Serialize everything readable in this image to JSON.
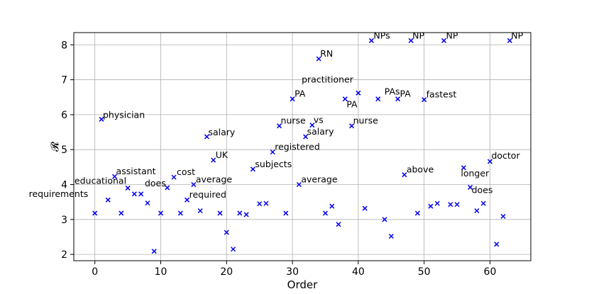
{
  "chart_data": {
    "type": "scatter",
    "xlabel": "Order",
    "ylabel": "𝓡",
    "xlim": [
      -3.2,
      66.2
    ],
    "ylim": [
      1.82,
      8.35
    ],
    "xticks": [
      0,
      10,
      20,
      30,
      40,
      50,
      60
    ],
    "yticks": [
      2,
      3,
      4,
      5,
      6,
      7,
      8
    ],
    "grid": true,
    "marker": "x",
    "color": "#0000ee",
    "points": [
      {
        "x": 0,
        "y": 3.18
      },
      {
        "x": 1,
        "y": 5.87,
        "label": "physician"
      },
      {
        "x": 2,
        "y": 3.56,
        "label": "requirements"
      },
      {
        "x": 3,
        "y": 4.23,
        "label": "assistant"
      },
      {
        "x": 4,
        "y": 3.18
      },
      {
        "x": 5,
        "y": 3.9,
        "label": "educational"
      },
      {
        "x": 6,
        "y": 3.73
      },
      {
        "x": 7,
        "y": 3.73
      },
      {
        "x": 8,
        "y": 3.47
      },
      {
        "x": 9,
        "y": 2.09
      },
      {
        "x": 10,
        "y": 3.18
      },
      {
        "x": 11,
        "y": 3.91,
        "label": "does"
      },
      {
        "x": 12,
        "y": 4.21,
        "label": "cost"
      },
      {
        "x": 13,
        "y": 3.18
      },
      {
        "x": 14,
        "y": 3.56,
        "label": "required"
      },
      {
        "x": 15,
        "y": 4.0,
        "label": "average"
      },
      {
        "x": 16,
        "y": 3.25
      },
      {
        "x": 17,
        "y": 5.37,
        "label": "salary"
      },
      {
        "x": 18,
        "y": 4.7,
        "label": "UK"
      },
      {
        "x": 19,
        "y": 3.18
      },
      {
        "x": 20,
        "y": 2.63
      },
      {
        "x": 21,
        "y": 2.15
      },
      {
        "x": 22,
        "y": 3.18
      },
      {
        "x": 23,
        "y": 3.14
      },
      {
        "x": 24,
        "y": 4.44,
        "label": "subjects"
      },
      {
        "x": 25,
        "y": 3.45
      },
      {
        "x": 26,
        "y": 3.46
      },
      {
        "x": 27,
        "y": 4.93,
        "label": "registered"
      },
      {
        "x": 28,
        "y": 5.68,
        "label": "nurse"
      },
      {
        "x": 29,
        "y": 3.18
      },
      {
        "x": 30,
        "y": 6.45,
        "label": "PA"
      },
      {
        "x": 31,
        "y": 4.0,
        "label": "average"
      },
      {
        "x": 32,
        "y": 5.37,
        "label": "salary"
      },
      {
        "x": 33,
        "y": 5.7,
        "label": "vs"
      },
      {
        "x": 34,
        "y": 7.6,
        "label": "RN"
      },
      {
        "x": 35,
        "y": 3.18
      },
      {
        "x": 36,
        "y": 3.38
      },
      {
        "x": 37,
        "y": 2.86
      },
      {
        "x": 38,
        "y": 6.45,
        "label": "PA"
      },
      {
        "x": 39,
        "y": 5.68,
        "label": "nurse"
      },
      {
        "x": 40,
        "y": 6.62,
        "label": "practitioner"
      },
      {
        "x": 41,
        "y": 3.32
      },
      {
        "x": 42,
        "y": 8.12,
        "label": "NPs"
      },
      {
        "x": 43,
        "y": 6.45,
        "label": "PAs"
      },
      {
        "x": 44,
        "y": 3.0
      },
      {
        "x": 45,
        "y": 2.52
      },
      {
        "x": 46,
        "y": 6.45,
        "label": "PA"
      },
      {
        "x": 47,
        "y": 4.28,
        "label": "above"
      },
      {
        "x": 48,
        "y": 8.12,
        "label": "NP"
      },
      {
        "x": 49,
        "y": 3.18
      },
      {
        "x": 50,
        "y": 6.43,
        "label": "fastest"
      },
      {
        "x": 51,
        "y": 3.38
      },
      {
        "x": 52,
        "y": 3.46
      },
      {
        "x": 53,
        "y": 8.12,
        "label": "NP"
      },
      {
        "x": 54,
        "y": 3.43
      },
      {
        "x": 55,
        "y": 3.43
      },
      {
        "x": 56,
        "y": 4.48,
        "label": "longer"
      },
      {
        "x": 57,
        "y": 3.92,
        "label": "does"
      },
      {
        "x": 58,
        "y": 3.25
      },
      {
        "x": 59,
        "y": 3.46
      },
      {
        "x": 60,
        "y": 4.66,
        "label": "doctor"
      },
      {
        "x": 61,
        "y": 2.29
      },
      {
        "x": 62,
        "y": 3.09
      },
      {
        "x": 63,
        "y": 8.12,
        "label": "NP"
      }
    ]
  }
}
